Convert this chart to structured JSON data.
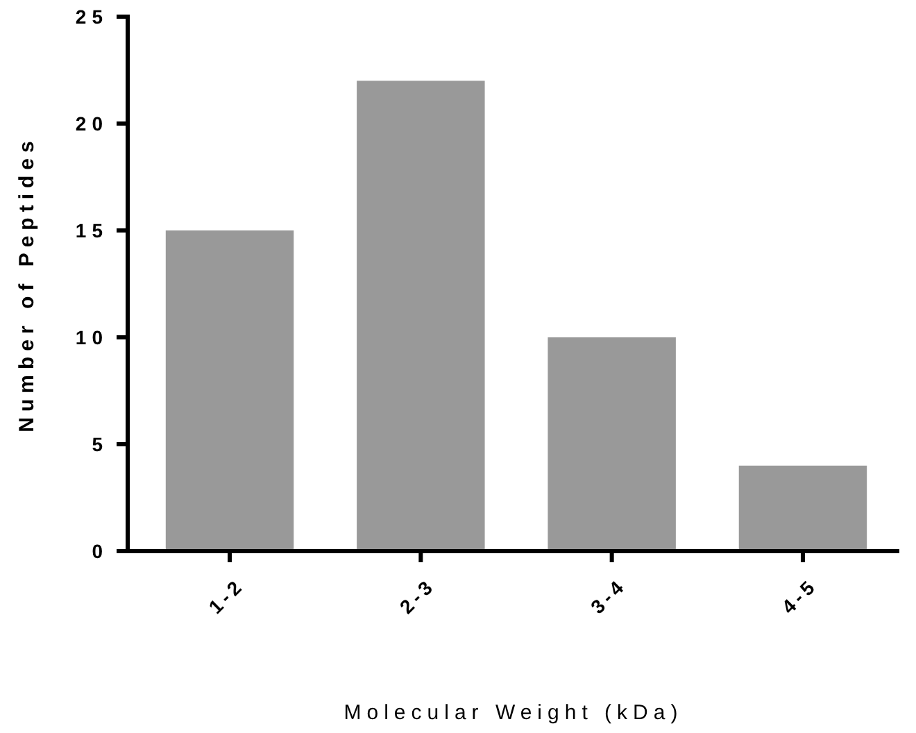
{
  "chart_data": {
    "type": "bar",
    "xlabel": "Molecular Weight (kDa)",
    "ylabel": "Number of Peptides",
    "categories": [
      "1-2",
      "2-3",
      "3-4",
      "4-5"
    ],
    "values": [
      15,
      22,
      10,
      4
    ],
    "color": "#999999",
    "ylim": [
      0,
      25
    ],
    "yticks": [
      0,
      5,
      10,
      15,
      20,
      25
    ],
    "grid": false
  }
}
